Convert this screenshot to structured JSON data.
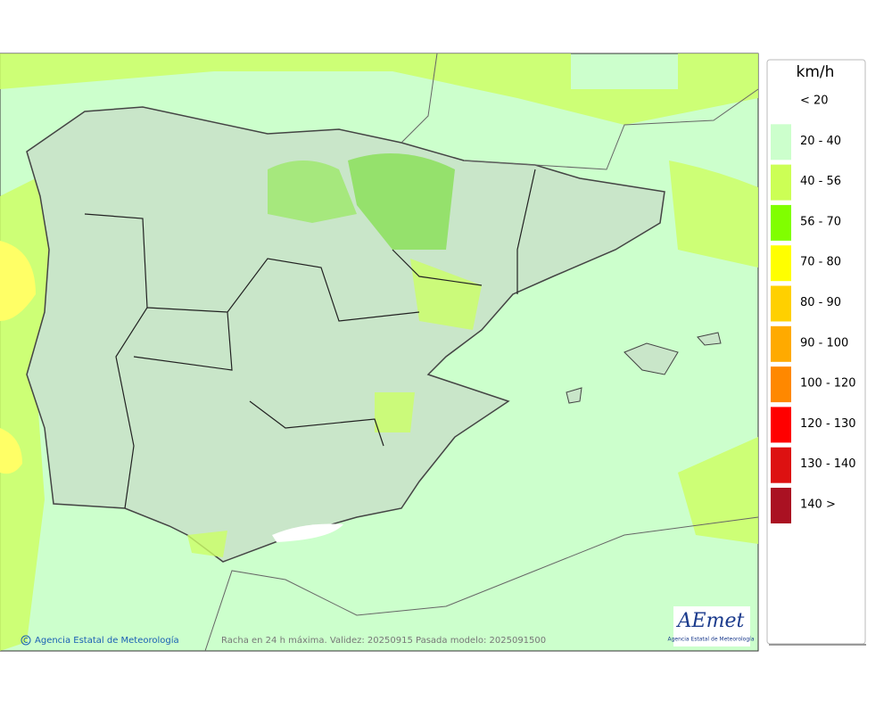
{
  "legend": {
    "unit": "km/h",
    "items": [
      {
        "label": "< 20"
      },
      {
        "label": "20 - 40",
        "color": "#ccffcc"
      },
      {
        "label": "40 - 56",
        "color": "#ccff55"
      },
      {
        "label": "56 - 70",
        "color": "#80ff00"
      },
      {
        "label": "70 - 80",
        "color": "#ffff00"
      },
      {
        "label": "80 - 90",
        "color": "#ffd000"
      },
      {
        "label": "90 - 100",
        "color": "#ffaa00"
      },
      {
        "label": "100 - 120",
        "color": "#ff8800"
      },
      {
        "label": "120 - 130",
        "color": "#ff0000"
      },
      {
        "label": "130 - 140",
        "color": "#dd1111"
      },
      {
        "label": "140 >",
        "color": "#aa1122"
      }
    ]
  },
  "footer": {
    "credit": "Agencia Estatal de Meteorología",
    "caption": "Racha en 24 h máxima. Validez: 20250915 Pasada modelo: 2025091500"
  },
  "logo": {
    "name": "AEmet",
    "subtitle": "Agencia Estatal de Meteorología"
  }
}
